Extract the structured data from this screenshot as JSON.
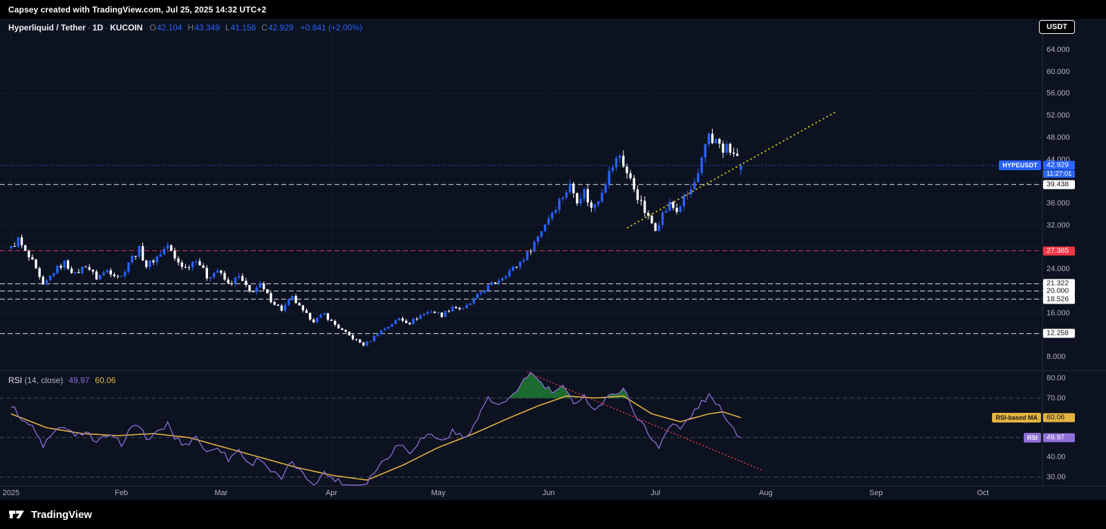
{
  "top_bar": {
    "caption": "Capsey created with TradingView.com, Jul 25, 2025 14:32 UTC+2"
  },
  "header": {
    "symbol": "Hyperliquid / Tether",
    "separator": "·",
    "interval": "1D",
    "exchange": "KUCOIN",
    "o_label": "O",
    "o": "42.104",
    "h_label": "H",
    "h": "43.349",
    "l_label": "L",
    "l": "41.156",
    "c_label": "C",
    "c": "42.929",
    "change": "+0.841 (+2.00%)"
  },
  "currency_button": {
    "label": "USDT"
  },
  "price_label": {
    "tag": "HYPEUSDT",
    "value": "42.929",
    "price": 42.929,
    "countdown": "11:27:01"
  },
  "price_scale": {
    "ticks": [
      {
        "label": "64.000",
        "price": 64
      },
      {
        "label": "60.000",
        "price": 60
      },
      {
        "label": "56.000",
        "price": 56
      },
      {
        "label": "52.000",
        "price": 52
      },
      {
        "label": "48.000",
        "price": 48
      },
      {
        "label": "44.000",
        "price": 44
      },
      {
        "label": "36.000",
        "price": 36
      },
      {
        "label": "32.000",
        "price": 32
      },
      {
        "label": "24.000",
        "price": 24
      },
      {
        "label": "16.000",
        "price": 16
      },
      {
        "label": "8.000",
        "price": 8
      }
    ]
  },
  "rsi_scale": {
    "ticks": [
      {
        "label": "80.00",
        "value": 80
      },
      {
        "label": "70.00",
        "value": 70
      },
      {
        "label": "40.00",
        "value": 40
      },
      {
        "label": "30.00",
        "value": 30
      }
    ],
    "ma_label": {
      "tag": "RSI-based MA",
      "value": "60.06",
      "v": 60.06
    },
    "rsi_label": {
      "tag": "RSI",
      "value": "49.97",
      "v": 49.97
    }
  },
  "rsi_header": {
    "title": "RSI",
    "params": "(14, close)",
    "rsi_value": "49.97",
    "ma_value": "60.06"
  },
  "time_scale": {
    "labels": [
      {
        "text": "2025",
        "day": 0
      },
      {
        "text": "Feb",
        "day": 31
      },
      {
        "text": "Mar",
        "day": 59
      },
      {
        "text": "Apr",
        "day": 90
      },
      {
        "text": "May",
        "day": 120
      },
      {
        "text": "Jun",
        "day": 151
      },
      {
        "text": "Jul",
        "day": 181
      },
      {
        "text": "Aug",
        "day": 212
      },
      {
        "text": "Sep",
        "day": 243
      },
      {
        "text": "Oct",
        "day": 273
      }
    ]
  },
  "footer": {
    "brand": "TradingView"
  },
  "colors": {
    "up": "#2962ff",
    "down": "#ffffff",
    "accent_blue": "#2962ff",
    "level_red": "#f23645",
    "trend_yellow": "#b8b31e",
    "rsi_purple": "#8f6fd8",
    "rsi_ma_yellow": "#e3b341",
    "overbought_green": "#1f7a33",
    "axis_text": "#b2b5be",
    "separator": "#2a2e39",
    "grid": "#1b2334",
    "background": "#0c1220"
  },
  "chart_data": {
    "type": "candlestick",
    "title": "Hyperliquid / Tether · 1D · KUCOIN",
    "x_unit": "days since 2025-01-01",
    "visible_days": 206,
    "y_axis": {
      "min": 6,
      "max": 66,
      "grid": [
        64,
        60,
        56,
        52,
        48,
        44,
        40,
        36,
        32,
        28,
        24,
        20,
        16,
        12,
        8
      ],
      "scale_right": true
    },
    "last_candle": {
      "open": 42.104,
      "high": 43.349,
      "low": 41.156,
      "close": 42.929,
      "change": "+0.841",
      "change_pct": "+2.00%"
    },
    "price_anchors": [
      [
        0,
        27.8
      ],
      [
        2,
        29.4
      ],
      [
        4,
        27.0
      ],
      [
        6,
        25.2
      ],
      [
        9,
        20.8
      ],
      [
        12,
        23.6
      ],
      [
        15,
        25.2
      ],
      [
        18,
        23.0
      ],
      [
        21,
        24.8
      ],
      [
        24,
        22.4
      ],
      [
        27,
        23.8
      ],
      [
        31,
        22.6
      ],
      [
        33,
        25.4
      ],
      [
        36,
        27.6
      ],
      [
        38,
        24.6
      ],
      [
        41,
        26.2
      ],
      [
        44,
        28.4
      ],
      [
        46,
        25.8
      ],
      [
        49,
        24.2
      ],
      [
        52,
        26.0
      ],
      [
        55,
        22.6
      ],
      [
        58,
        23.8
      ],
      [
        61,
        21.2
      ],
      [
        64,
        22.6
      ],
      [
        67,
        19.8
      ],
      [
        70,
        21.0
      ],
      [
        73,
        18.4
      ],
      [
        76,
        16.6
      ],
      [
        79,
        18.8
      ],
      [
        82,
        16.2
      ],
      [
        85,
        14.6
      ],
      [
        88,
        15.8
      ],
      [
        90,
        14.4
      ],
      [
        93,
        12.8
      ],
      [
        96,
        11.4
      ],
      [
        99,
        10.2
      ],
      [
        101,
        11.0
      ],
      [
        103,
        12.4
      ],
      [
        106,
        13.6
      ],
      [
        109,
        15.0
      ],
      [
        112,
        14.2
      ],
      [
        115,
        15.6
      ],
      [
        118,
        16.4
      ],
      [
        121,
        15.6
      ],
      [
        124,
        17.2
      ],
      [
        127,
        16.6
      ],
      [
        130,
        18.4
      ],
      [
        133,
        20.4
      ],
      [
        136,
        21.6
      ],
      [
        139,
        23.2
      ],
      [
        142,
        24.6
      ],
      [
        145,
        26.8
      ],
      [
        148,
        30.0
      ],
      [
        151,
        33.5
      ],
      [
        154,
        36.5
      ],
      [
        157,
        39.2
      ],
      [
        159,
        36.8
      ],
      [
        161,
        38.2
      ],
      [
        163,
        35.0
      ],
      [
        165,
        37.0
      ],
      [
        167,
        40.2
      ],
      [
        169,
        42.8
      ],
      [
        171,
        44.8
      ],
      [
        173,
        41.5
      ],
      [
        175,
        38.8
      ],
      [
        177,
        35.8
      ],
      [
        179,
        33.2
      ],
      [
        181,
        31.6
      ],
      [
        183,
        34.0
      ],
      [
        185,
        35.8
      ],
      [
        187,
        34.6
      ],
      [
        189,
        36.8
      ],
      [
        191,
        38.4
      ],
      [
        193,
        41.0
      ],
      [
        194,
        43.5
      ],
      [
        195,
        46.0
      ],
      [
        196,
        48.6
      ],
      [
        197,
        47.2
      ],
      [
        198,
        48.4
      ],
      [
        199,
        46.4
      ],
      [
        200,
        45.2
      ],
      [
        201,
        46.6
      ],
      [
        202,
        44.8
      ],
      [
        203,
        45.6
      ],
      [
        204,
        43.8
      ],
      [
        205,
        42.93
      ]
    ],
    "levels": [
      {
        "price": 39.438,
        "label": "39.438",
        "color": "#ffffff",
        "label_bg": "#ffffff",
        "label_fg": "#111111"
      },
      {
        "price": 27.365,
        "label": "27.365",
        "color": "#f23645",
        "label_bg": "#f23645",
        "label_fg": "#ffffff"
      },
      {
        "price": 21.322,
        "label": "21.322",
        "color": "#ffffff",
        "label_bg": "#ffffff",
        "label_fg": "#111111"
      },
      {
        "price": 20.0,
        "label": "20.000",
        "color": "#ffffff",
        "label_bg": "#ffffff",
        "label_fg": "#111111"
      },
      {
        "price": 18.526,
        "label": "18.526",
        "color": "#ffffff",
        "label_bg": "#ffffff",
        "label_fg": "#111111"
      },
      {
        "price": 12.258,
        "label": "12.258",
        "color": "#ffffff",
        "label_bg": "#ffffff",
        "label_fg": "#111111"
      }
    ],
    "trendline": {
      "from": [
        173,
        31.5
      ],
      "to": [
        232,
        52.8
      ],
      "style": "dotted",
      "color": "#b8b31e"
    },
    "current_price_line": {
      "price": 42.929,
      "style": "dotted",
      "color": "#2962ff"
    },
    "rsi": {
      "period": 14,
      "source": "close",
      "value": 49.97,
      "ma_value": 60.06,
      "axis_range": [
        25.5,
        83.5
      ],
      "dashed_levels": [
        70,
        50,
        30
      ],
      "anchors": [
        [
          0,
          66
        ],
        [
          3,
          60
        ],
        [
          6,
          55
        ],
        [
          9,
          46
        ],
        [
          12,
          52
        ],
        [
          15,
          56
        ],
        [
          18,
          50
        ],
        [
          21,
          54
        ],
        [
          24,
          47
        ],
        [
          27,
          51
        ],
        [
          31,
          47
        ],
        [
          33,
          53
        ],
        [
          36,
          57
        ],
        [
          38,
          49
        ],
        [
          41,
          52
        ],
        [
          44,
          57
        ],
        [
          46,
          50
        ],
        [
          49,
          46
        ],
        [
          52,
          51
        ],
        [
          55,
          42
        ],
        [
          58,
          46
        ],
        [
          61,
          39
        ],
        [
          64,
          44
        ],
        [
          67,
          36
        ],
        [
          70,
          40
        ],
        [
          73,
          33
        ],
        [
          76,
          29
        ],
        [
          79,
          38
        ],
        [
          82,
          31
        ],
        [
          85,
          27
        ],
        [
          88,
          32
        ],
        [
          91,
          29
        ],
        [
          94,
          26
        ],
        [
          97,
          24
        ],
        [
          100,
          28
        ],
        [
          103,
          35
        ],
        [
          106,
          41
        ],
        [
          109,
          47
        ],
        [
          112,
          43
        ],
        [
          115,
          49
        ],
        [
          118,
          52
        ],
        [
          121,
          48
        ],
        [
          124,
          53
        ],
        [
          127,
          50
        ],
        [
          130,
          56
        ],
        [
          132,
          63
        ],
        [
          134,
          71
        ],
        [
          136,
          66
        ],
        [
          139,
          68
        ],
        [
          142,
          72
        ],
        [
          144,
          80
        ],
        [
          146,
          83
        ],
        [
          149,
          77
        ],
        [
          152,
          73
        ],
        [
          155,
          75
        ],
        [
          158,
          68
        ],
        [
          161,
          71
        ],
        [
          164,
          64
        ],
        [
          167,
          69
        ],
        [
          170,
          73
        ],
        [
          172,
          75
        ],
        [
          174,
          67
        ],
        [
          176,
          60
        ],
        [
          178,
          55
        ],
        [
          180,
          49
        ],
        [
          182,
          46
        ],
        [
          184,
          53
        ],
        [
          186,
          57
        ],
        [
          188,
          54
        ],
        [
          190,
          59
        ],
        [
          192,
          63
        ],
        [
          194,
          68
        ],
        [
          196,
          71
        ],
        [
          198,
          67
        ],
        [
          200,
          63
        ],
        [
          202,
          57
        ],
        [
          204,
          52
        ],
        [
          205,
          49.97
        ]
      ],
      "ma_anchors": [
        [
          0,
          62
        ],
        [
          10,
          55
        ],
        [
          20,
          52
        ],
        [
          30,
          51
        ],
        [
          40,
          52
        ],
        [
          50,
          50
        ],
        [
          60,
          45
        ],
        [
          70,
          40
        ],
        [
          80,
          35
        ],
        [
          90,
          31
        ],
        [
          100,
          28.5
        ],
        [
          110,
          36
        ],
        [
          120,
          45
        ],
        [
          130,
          52
        ],
        [
          140,
          60
        ],
        [
          148,
          66
        ],
        [
          156,
          71
        ],
        [
          164,
          70
        ],
        [
          172,
          71
        ],
        [
          180,
          62
        ],
        [
          188,
          58
        ],
        [
          196,
          62
        ],
        [
          200,
          63
        ],
        [
          205,
          60.06
        ]
      ],
      "trendline": {
        "from": [
          145,
          83
        ],
        "to": [
          211,
          33.5
        ],
        "style": "dotted",
        "color": "#f23645"
      },
      "overbought_level": 70
    }
  }
}
